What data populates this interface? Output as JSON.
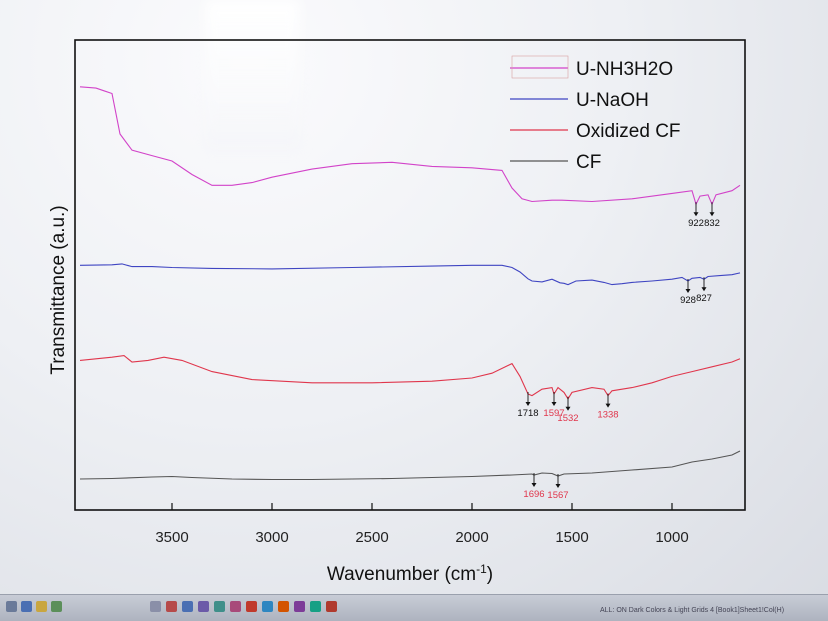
{
  "chart_data": {
    "type": "line",
    "xlabel": "Wavenumber (cm",
    "xlabel_sup": "-1",
    "xlabel_end": ")",
    "ylabel": "Transmittance (a.u.)",
    "xlim": [
      4000,
      650
    ],
    "x_ticks": [
      "3500",
      "3000",
      "2500",
      "2000",
      "1500",
      "1000"
    ],
    "x_tick_values": [
      3500,
      3000,
      2500,
      2000,
      1500,
      1000
    ],
    "legend_position": "top-right",
    "series": [
      {
        "name": "U-NH3H2O",
        "color": "#d243c9",
        "offset": 3,
        "points": [
          [
            3960,
            0.95
          ],
          [
            3880,
            0.94
          ],
          [
            3840,
            0.92
          ],
          [
            3800,
            0.9
          ],
          [
            3760,
            0.6
          ],
          [
            3700,
            0.48
          ],
          [
            3600,
            0.44
          ],
          [
            3500,
            0.4
          ],
          [
            3400,
            0.3
          ],
          [
            3300,
            0.22
          ],
          [
            3200,
            0.22
          ],
          [
            3100,
            0.24
          ],
          [
            3000,
            0.28
          ],
          [
            2800,
            0.34
          ],
          [
            2600,
            0.38
          ],
          [
            2400,
            0.39
          ],
          [
            2200,
            0.36
          ],
          [
            2000,
            0.35
          ],
          [
            1850,
            0.33
          ],
          [
            1800,
            0.2
          ],
          [
            1750,
            0.12
          ],
          [
            1700,
            0.1
          ],
          [
            1600,
            0.11
          ],
          [
            1550,
            0.11
          ],
          [
            1400,
            0.1
          ],
          [
            1200,
            0.12
          ],
          [
            1000,
            0.16
          ],
          [
            900,
            0.18
          ],
          [
            880,
            0.08
          ],
          [
            860,
            0.14
          ],
          [
            820,
            0.15
          ],
          [
            800,
            0.08
          ],
          [
            780,
            0.15
          ],
          [
            700,
            0.18
          ],
          [
            660,
            0.22
          ]
        ]
      },
      {
        "name": "U-NaOH",
        "color": "#3f45c2",
        "offset": 2,
        "points": [
          [
            3960,
            0.55
          ],
          [
            3800,
            0.56
          ],
          [
            3750,
            0.58
          ],
          [
            3700,
            0.52
          ],
          [
            3600,
            0.52
          ],
          [
            3500,
            0.5
          ],
          [
            3300,
            0.48
          ],
          [
            3000,
            0.47
          ],
          [
            2600,
            0.5
          ],
          [
            2200,
            0.53
          ],
          [
            2000,
            0.55
          ],
          [
            1850,
            0.55
          ],
          [
            1800,
            0.5
          ],
          [
            1760,
            0.4
          ],
          [
            1720,
            0.25
          ],
          [
            1700,
            0.2
          ],
          [
            1650,
            0.18
          ],
          [
            1600,
            0.24
          ],
          [
            1560,
            0.16
          ],
          [
            1540,
            0.15
          ],
          [
            1520,
            0.12
          ],
          [
            1480,
            0.2
          ],
          [
            1400,
            0.22
          ],
          [
            1340,
            0.17
          ],
          [
            1300,
            0.12
          ],
          [
            1250,
            0.14
          ],
          [
            1200,
            0.17
          ],
          [
            1100,
            0.2
          ],
          [
            1000,
            0.24
          ],
          [
            950,
            0.28
          ],
          [
            920,
            0.2
          ],
          [
            900,
            0.26
          ],
          [
            860,
            0.28
          ],
          [
            840,
            0.24
          ],
          [
            820,
            0.3
          ],
          [
            760,
            0.32
          ],
          [
            700,
            0.34
          ],
          [
            660,
            0.38
          ]
        ]
      },
      {
        "name": "Oxidized CF",
        "color": "#e0364c",
        "offset": 1,
        "points": [
          [
            3960,
            0.62
          ],
          [
            3800,
            0.66
          ],
          [
            3740,
            0.68
          ],
          [
            3700,
            0.6
          ],
          [
            3620,
            0.62
          ],
          [
            3540,
            0.66
          ],
          [
            3450,
            0.62
          ],
          [
            3300,
            0.48
          ],
          [
            3100,
            0.38
          ],
          [
            2800,
            0.34
          ],
          [
            2500,
            0.34
          ],
          [
            2200,
            0.36
          ],
          [
            2000,
            0.4
          ],
          [
            1900,
            0.46
          ],
          [
            1800,
            0.58
          ],
          [
            1760,
            0.42
          ],
          [
            1720,
            0.2
          ],
          [
            1700,
            0.18
          ],
          [
            1650,
            0.26
          ],
          [
            1600,
            0.28
          ],
          [
            1590,
            0.2
          ],
          [
            1570,
            0.28
          ],
          [
            1540,
            0.22
          ],
          [
            1520,
            0.14
          ],
          [
            1500,
            0.22
          ],
          [
            1400,
            0.28
          ],
          [
            1340,
            0.26
          ],
          [
            1320,
            0.18
          ],
          [
            1300,
            0.24
          ],
          [
            1200,
            0.28
          ],
          [
            1100,
            0.34
          ],
          [
            1000,
            0.42
          ],
          [
            900,
            0.48
          ],
          [
            800,
            0.54
          ],
          [
            700,
            0.6
          ],
          [
            660,
            0.64
          ]
        ]
      },
      {
        "name": "CF",
        "color": "#555555",
        "offset": 0,
        "points": [
          [
            3960,
            0.02
          ],
          [
            3800,
            0.03
          ],
          [
            3600,
            0.06
          ],
          [
            3500,
            0.07
          ],
          [
            3400,
            0.05
          ],
          [
            3200,
            0.02
          ],
          [
            3000,
            0.01
          ],
          [
            2800,
            0.01
          ],
          [
            2600,
            0.02
          ],
          [
            2400,
            0.03
          ],
          [
            2200,
            0.05
          ],
          [
            2000,
            0.07
          ],
          [
            1800,
            0.1
          ],
          [
            1700,
            0.12
          ],
          [
            1690,
            0.1
          ],
          [
            1650,
            0.14
          ],
          [
            1600,
            0.13
          ],
          [
            1570,
            0.08
          ],
          [
            1540,
            0.12
          ],
          [
            1400,
            0.14
          ],
          [
            1200,
            0.2
          ],
          [
            1000,
            0.26
          ],
          [
            900,
            0.36
          ],
          [
            800,
            0.42
          ],
          [
            700,
            0.5
          ],
          [
            660,
            0.58
          ]
        ]
      }
    ],
    "annotations": [
      {
        "text": "922",
        "series": 0,
        "x": 880,
        "color": "#111111",
        "below": true
      },
      {
        "text": "832",
        "series": 0,
        "x": 800,
        "color": "#111111",
        "below": true
      },
      {
        "text": "928",
        "series": 1,
        "x": 920,
        "color": "#111111",
        "below": true
      },
      {
        "text": "827",
        "series": 1,
        "x": 840,
        "color": "#111111",
        "below": true
      },
      {
        "text": "1718",
        "series": 2,
        "x": 1720,
        "color": "#111111",
        "below": true
      },
      {
        "text": "1597",
        "series": 2,
        "x": 1590,
        "color": "#e0364c",
        "below": true
      },
      {
        "text": "1532",
        "series": 2,
        "x": 1520,
        "color": "#e0364c",
        "below": true
      },
      {
        "text": "1338",
        "series": 2,
        "x": 1320,
        "color": "#e0364c",
        "below": true
      },
      {
        "text": "1696",
        "series": 3,
        "x": 1690,
        "color": "#e0364c",
        "below": true
      },
      {
        "text": "1567",
        "series": 3,
        "x": 1570,
        "color": "#e0364c",
        "below": true
      }
    ]
  },
  "taskbar": {
    "status_text": "ALL: ON Dark Colors & Light Grids 4 [Book1]Sheet1!Col(H)",
    "icon_colors": [
      "#6a7a99",
      "#4a6fb3",
      "#c9a640",
      "#5b8f5a",
      "#8a8fa8",
      "#b64a4a",
      "#4a6fb3",
      "#6b5aa8",
      "#3f8f8a",
      "#a84a7a",
      "#c0392b",
      "#2e86c1",
      "#d35400",
      "#7d3c98",
      "#16a085",
      "#b03a2e"
    ]
  }
}
